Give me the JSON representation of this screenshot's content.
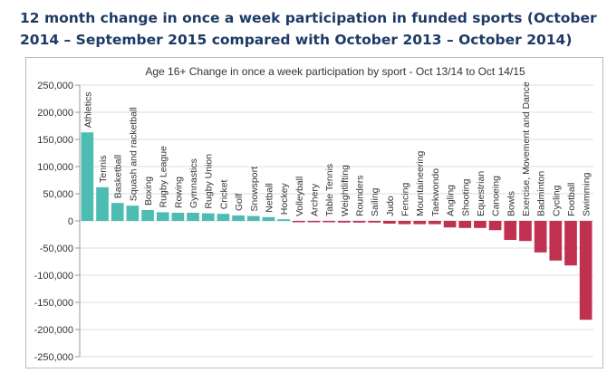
{
  "page_title": "12 month change in once a week participation in funded sports (October 2014 – September 2015 compared with October 2013 – October 2014)",
  "chart_data": {
    "type": "bar",
    "title": "Age 16+ Change in once a week participation by sport - Oct 13/14 to Oct 14/15",
    "xlabel": "",
    "ylabel": "",
    "ylim": [
      -250000,
      250000
    ],
    "yticks": [
      250000,
      200000,
      150000,
      100000,
      50000,
      0,
      -50000,
      -100000,
      -150000,
      -200000,
      -250000
    ],
    "ytick_labels": [
      "250,000",
      "200,000",
      "150,000",
      "100,000",
      "50,000",
      "0",
      "-50,000",
      "-100,000",
      "-150,000",
      "-200,000",
      "-250,000"
    ],
    "grid": true,
    "colors": {
      "positive": "#4dbdb3",
      "negative": "#c0304f"
    },
    "categories": [
      "Athletics",
      "Tennis",
      "Basketball",
      "Squash and racketball",
      "Boxing",
      "Rugby League",
      "Rowing",
      "Gymnastics",
      "Rugby Union",
      "Cricket",
      "Golf",
      "Snowsport",
      "Netball",
      "Hockey",
      "Volleyball",
      "Archery",
      "Table Tennis",
      "Weightlifting",
      "Rounders",
      "Sailing",
      "Judo",
      "Fencing",
      "Mountaineering",
      "Taekwondo",
      "Angling",
      "Shooting",
      "Equestrian",
      "Canoeing",
      "Bowls",
      "Exercise, Movement and Dance",
      "Badminton",
      "Cycling",
      "Football",
      "Swimming"
    ],
    "values": [
      163000,
      62000,
      33000,
      28000,
      20000,
      16000,
      15000,
      15000,
      14000,
      13000,
      10000,
      9000,
      7000,
      3000,
      -1000,
      -2000,
      -2000,
      -3000,
      -3000,
      -3000,
      -5000,
      -6000,
      -6000,
      -6000,
      -12000,
      -13000,
      -13000,
      -17000,
      -35000,
      -37000,
      -58000,
      -73000,
      -82000,
      -182000
    ]
  }
}
